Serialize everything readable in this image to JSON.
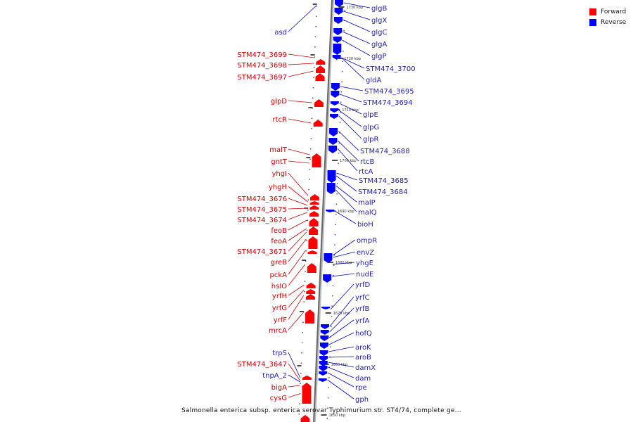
{
  "legend": {
    "items": [
      {
        "label": "Forward",
        "color": "#ff0000"
      },
      {
        "label": "Reverse",
        "color": "#0000ff"
      }
    ]
  },
  "caption": "Salmonella enterica subsp. enterica serovar Typhimurium str. ST4/74, complete ge...",
  "ticks": [
    "1730 kbp",
    "1720 kbp",
    "1710 kbp",
    "1700 kbp",
    "1690 kbp",
    "1680 kbp",
    "1670 kbp",
    "1660 kbp",
    "1650 kbp"
  ],
  "forward_genes": [
    "asd",
    "STM474_3699",
    "STM474_3698",
    "STM474_3697",
    "glpD",
    "rtcR",
    "malT",
    "gntT",
    "yhgI",
    "yhgH",
    "STM474_3676",
    "STM474_3675",
    "STM474_3674",
    "feoB",
    "feoA",
    "STM474_3671",
    "greB",
    "pckA",
    "hslO",
    "yrfH",
    "yrfG",
    "yrfF",
    "mrcA",
    "trpS",
    "STM474_3647",
    "tnpA_2",
    "bigA",
    "cysG"
  ],
  "reverse_genes": [
    "glgB",
    "glgX",
    "glgC",
    "glgA",
    "glgP",
    "STM474_3700",
    "gldA",
    "STM474_3695",
    "STM474_3694",
    "glpE",
    "glpG",
    "glpR",
    "STM474_3688",
    "rtcB",
    "rtcA",
    "STM474_3685",
    "STM474_3684",
    "malP",
    "malQ",
    "bioH",
    "ompR",
    "envZ",
    "yhgE",
    "nudE",
    "yrfD",
    "yrfC",
    "yrfB",
    "yrfA",
    "hofQ",
    "aroK",
    "aroB",
    "damX",
    "dam",
    "rpe",
    "gph"
  ]
}
